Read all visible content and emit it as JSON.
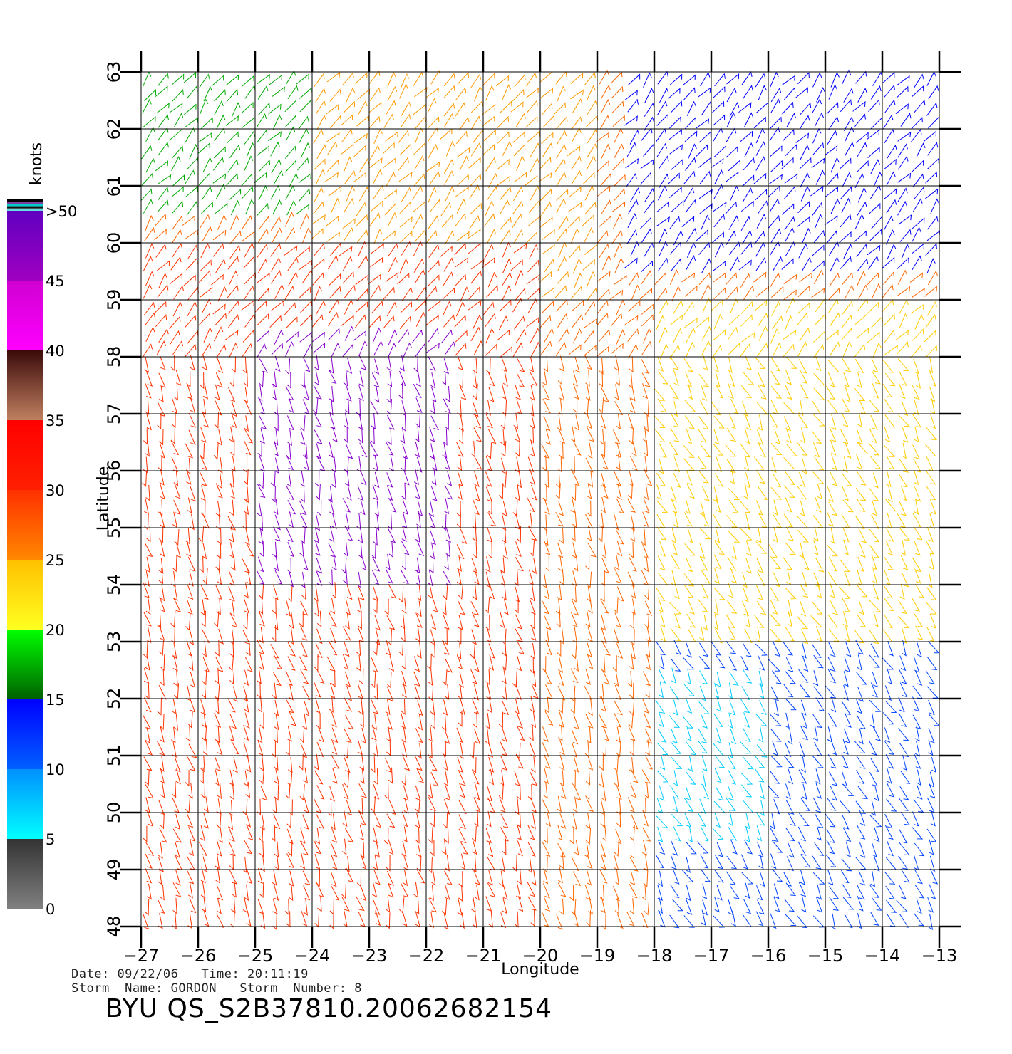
{
  "footer": {
    "date_label": "Date:",
    "date_value": "09/22/06",
    "time_label": "Time:",
    "time_value": "20:11:19",
    "storm_name_label": "Storm  Name:",
    "storm_name_value": "GORDON",
    "storm_number_label": "Storm  Number:",
    "storm_number_value": "8",
    "product_id": "BYU  QS_S2B37810.20062682154"
  },
  "chart_data": {
    "type": "wind-barb-map",
    "xlabel": "Longitude",
    "ylabel": "Latitude",
    "xlim": [
      -27,
      -13
    ],
    "ylim": [
      48,
      63
    ],
    "x_ticks": [
      -27,
      -26,
      -25,
      -24,
      -23,
      -22,
      -21,
      -20,
      -19,
      -18,
      -17,
      -16,
      -15,
      -14,
      -13
    ],
    "y_ticks": [
      48,
      49,
      50,
      51,
      52,
      53,
      54,
      55,
      56,
      57,
      58,
      59,
      60,
      61,
      62,
      63
    ],
    "x_tick_labels": [
      "−27",
      "−26",
      "−25",
      "−24",
      "−23",
      "−22",
      "−21",
      "−20",
      "−19",
      "−18",
      "−17",
      "−16",
      "−15",
      "−14",
      "−13"
    ],
    "y_tick_labels": [
      "48",
      "49",
      "50",
      "51",
      "52",
      "53",
      "54",
      "55",
      "56",
      "57",
      "58",
      "59",
      "60",
      "61",
      "62",
      "63"
    ],
    "grid": true,
    "colorbar": {
      "title": "knots",
      "labels": [
        "0",
        "5",
        "10",
        "15",
        "20",
        "25",
        "30",
        "35",
        "40",
        "45",
        ">50"
      ],
      "bands": [
        {
          "from": 0,
          "to": 5,
          "colors": [
            "#808080",
            "#333333"
          ]
        },
        {
          "from": 5,
          "to": 10,
          "colors": [
            "#00ffff",
            "#0090ff"
          ]
        },
        {
          "from": 10,
          "to": 15,
          "colors": [
            "#0060ff",
            "#0000ff"
          ]
        },
        {
          "from": 15,
          "to": 20,
          "colors": [
            "#006000",
            "#00ff00"
          ]
        },
        {
          "from": 20,
          "to": 25,
          "colors": [
            "#ffff20",
            "#ffc000"
          ]
        },
        {
          "from": 25,
          "to": 30,
          "colors": [
            "#ff8800",
            "#ff3000"
          ]
        },
        {
          "from": 30,
          "to": 35,
          "colors": [
            "#ff2000",
            "#ff0000"
          ]
        },
        {
          "from": 35,
          "to": 40,
          "colors": [
            "#c08060",
            "#3a0a0a"
          ]
        },
        {
          "from": 40,
          "to": 45,
          "colors": [
            "#ff00ff",
            "#d000d0"
          ]
        },
        {
          "from": 45,
          "to": 50,
          "colors": [
            "#a000c0",
            "#6000c0"
          ]
        }
      ]
    },
    "wind_regions": [
      {
        "region": "north-west corner",
        "lon": [
          -27,
          -24
        ],
        "lat": [
          60.5,
          63
        ],
        "speed_kt": "15-20",
        "color": "#00aa00"
      },
      {
        "region": "northern band",
        "lon": [
          -24,
          -19
        ],
        "lat": [
          59,
          63
        ],
        "speed_kt": "20-30",
        "color": "#ff9900"
      },
      {
        "region": "western interior",
        "lon": [
          -27,
          -20
        ],
        "lat": [
          48,
          60
        ],
        "speed_kt": "25-35",
        "color": "#ff3300"
      },
      {
        "region": "purple core",
        "lon": [
          -25,
          -21.5
        ],
        "lat": [
          54,
          58.5
        ],
        "speed_kt": "45-50",
        "color": "#8800cc"
      },
      {
        "region": "north-east",
        "lon": [
          -18.5,
          -13
        ],
        "lat": [
          59.5,
          63
        ],
        "speed_kt": "10-15",
        "color": "#0000ff"
      },
      {
        "region": "eastern middle",
        "lon": [
          -18,
          -13
        ],
        "lat": [
          53,
          59
        ],
        "speed_kt": "15-25",
        "color": "#ffcc00"
      },
      {
        "region": "south-east",
        "lon": [
          -18,
          -13
        ],
        "lat": [
          48,
          53
        ],
        "speed_kt": "5-15",
        "color": "#0044ff"
      },
      {
        "region": "storm centre",
        "lon": [
          -18,
          -16
        ],
        "lat": [
          49.5,
          52.5
        ],
        "speed_kt": "0-10",
        "color": "#00ccff"
      }
    ]
  }
}
